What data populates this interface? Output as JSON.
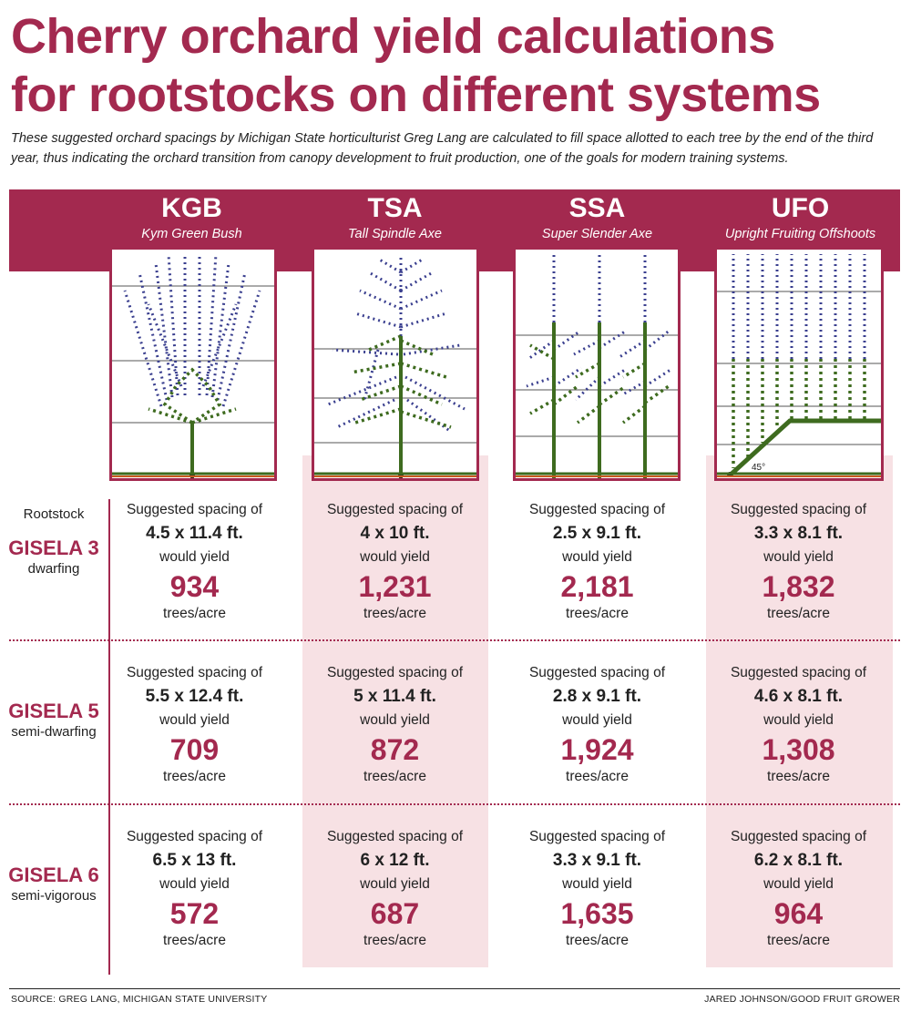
{
  "title_lines": [
    "Cherry orchard yield calculations",
    "for rootstocks on different systems"
  ],
  "intro": "These suggested orchard spacings by Michigan State horticulturist Greg Lang are calculated to fill space allotted to each tree by the end of the third year, thus indicating the orchard transition from canopy development to fruit production, one of the goals for modern training systems.",
  "systems": [
    {
      "abbr": "KGB",
      "name": "Kym Green Bush"
    },
    {
      "abbr": "TSA",
      "name": "Tall Spindle Axe"
    },
    {
      "abbr": "SSA",
      "name": "Super Slender Axe"
    },
    {
      "abbr": "UFO",
      "name": "Upright Fruiting Offshoots"
    }
  ],
  "diagram_angle_label": "45°",
  "rootstock_heading": "Rootstock",
  "spacing_label": "Suggested spacing of",
  "yield_label": "would yield",
  "unit_label": "trees/acre",
  "rootstocks": [
    {
      "name": "GISELA 3",
      "desc": "dwarfing",
      "cells": [
        {
          "spacing": "4.5 x 11.4 ft.",
          "yield": "934"
        },
        {
          "spacing": "4 x 10 ft.",
          "yield": "1,231"
        },
        {
          "spacing": "2.5 x 9.1 ft.",
          "yield": "2,181"
        },
        {
          "spacing": "3.3 x 8.1 ft.",
          "yield": "1,832"
        }
      ]
    },
    {
      "name": "GISELA 5",
      "desc": "semi-dwarfing",
      "cells": [
        {
          "spacing": "5.5 x 12.4 ft.",
          "yield": "709"
        },
        {
          "spacing": "5 x 11.4 ft.",
          "yield": "872"
        },
        {
          "spacing": "2.8 x 9.1 ft.",
          "yield": "1,924"
        },
        {
          "spacing": "4.6 x 8.1 ft.",
          "yield": "1,308"
        }
      ]
    },
    {
      "name": "GISELA 6",
      "desc": "semi-vigorous",
      "cells": [
        {
          "spacing": "6.5 x 13 ft.",
          "yield": "572"
        },
        {
          "spacing": "6 x 12 ft.",
          "yield": "687"
        },
        {
          "spacing": "3.3 x 9.1 ft.",
          "yield": "1,635"
        },
        {
          "spacing": "6.2 x 8.1 ft.",
          "yield": "964"
        }
      ]
    }
  ],
  "source": "SOURCE: GREG LANG, MICHIGAN STATE UNIVERSITY",
  "credit": "JARED JOHNSON/GOOD FRUIT GROWER",
  "colors": {
    "accent": "#a3294f",
    "shade": "#f7e1e4",
    "branch": "#3e6b1f",
    "shoot": "#3a3f8f"
  }
}
